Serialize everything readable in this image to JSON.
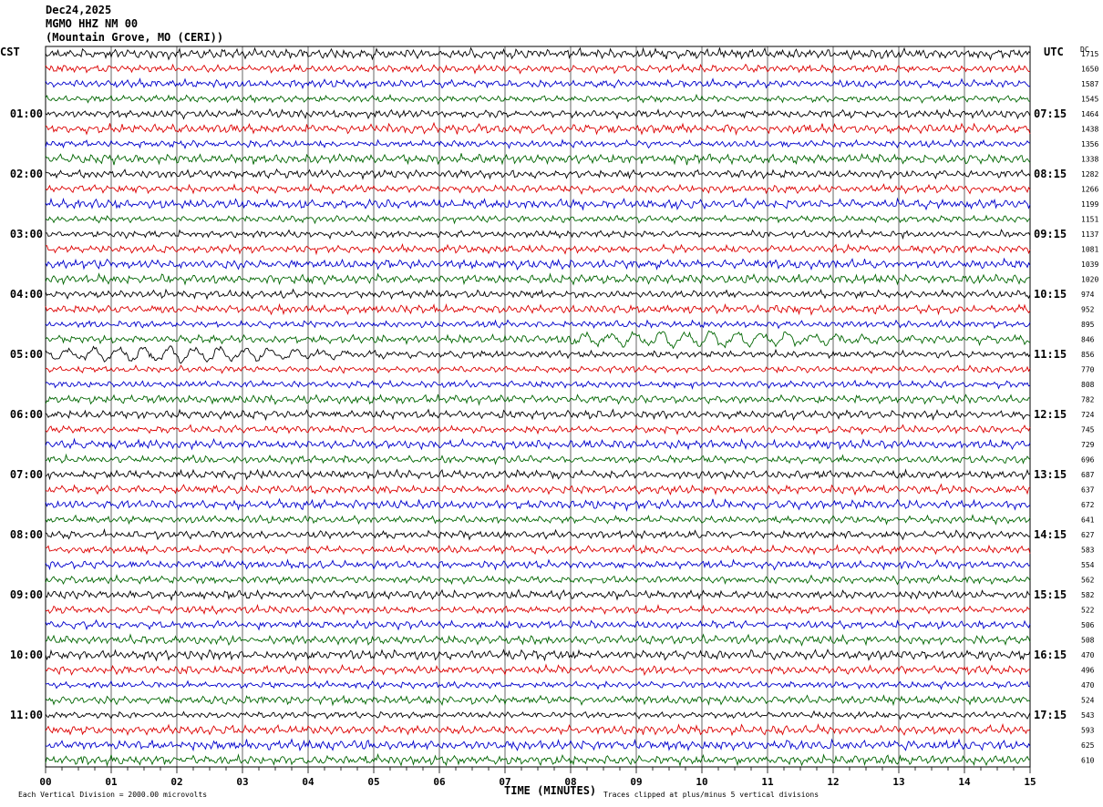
{
  "header": {
    "date": "Dec24,2025",
    "station": "MGMO HHZ NM 00",
    "location": "(Mountain Grove, MO (CERI))"
  },
  "axes": {
    "left_label": "CST",
    "right_label": "UTC",
    "dc_label": "DC",
    "time_label": "TIME (MINUTES)"
  },
  "footer": {
    "scale_note": "Each Vertical Division = 2000.00 microvolts",
    "clip_note": "Traces clipped at plus/minus 5 vertical divisions"
  },
  "colors": {
    "trace_cycle": [
      "#000000",
      "#dd0000",
      "#0000cc",
      "#006600"
    ],
    "grid": "#000000"
  },
  "chart_data": {
    "type": "line",
    "x_range_minutes": [
      0,
      15
    ],
    "x_ticks": [
      "00",
      "01",
      "02",
      "03",
      "04",
      "05",
      "06",
      "07",
      "08",
      "09",
      "10",
      "11",
      "12",
      "13",
      "14",
      "15"
    ],
    "rows_per_hour": 4,
    "row_count": 48,
    "local_hour_labels": [
      "01:00",
      "02:00",
      "03:00",
      "04:00",
      "05:00",
      "06:00",
      "07:00",
      "08:00",
      "09:00",
      "10:00",
      "11:00"
    ],
    "utc_hour_labels": [
      "07:15",
      "08:15",
      "09:15",
      "10:15",
      "11:15",
      "12:15",
      "13:15",
      "14:15",
      "15:15",
      "16:15",
      "17:15"
    ],
    "dc_offsets": [
      1715,
      1650,
      1587,
      1545,
      1464,
      1438,
      1356,
      1338,
      1282,
      1266,
      1199,
      1151,
      1137,
      1081,
      1039,
      1020,
      974,
      952,
      895,
      846,
      856,
      770,
      808,
      782,
      724,
      745,
      729,
      696,
      687,
      637,
      672,
      641,
      627,
      583,
      554,
      562,
      582,
      522,
      506,
      508,
      470,
      496,
      470,
      524,
      543,
      593,
      625,
      610
    ],
    "notable_events": [
      {
        "row": 19,
        "description": "long-period oscillation",
        "start_minute": 8.0,
        "end_minute": 15
      },
      {
        "row": 20,
        "description": "long-period oscillation",
        "start_minute": 0,
        "end_minute": 6.5
      }
    ]
  }
}
